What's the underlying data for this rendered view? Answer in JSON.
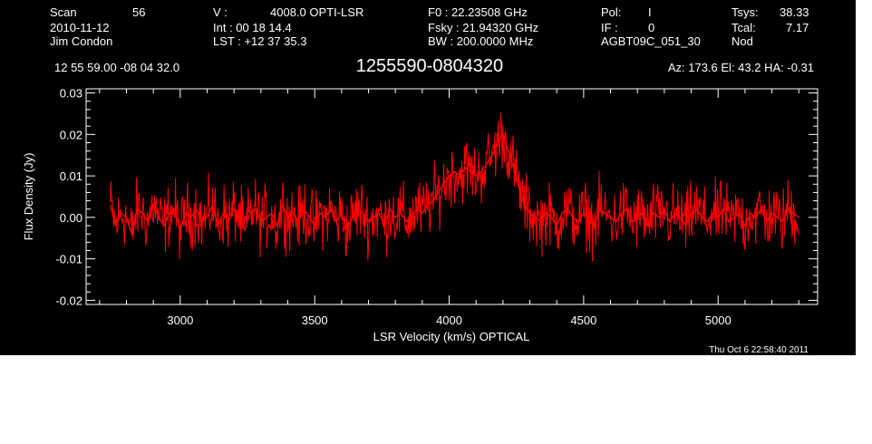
{
  "header": {
    "row1": [
      {
        "key": "scan",
        "text": "Scan"
      },
      {
        "key": "scan_value",
        "text": "56"
      },
      {
        "key": "v_label",
        "text": "V   :"
      },
      {
        "key": "v_value",
        "text": "4008.0 OPTI-LSR"
      },
      {
        "key": "f0",
        "text": "F0   :  22.23508 GHz"
      },
      {
        "key": "pol",
        "text": "Pol:"
      },
      {
        "key": "pol_value",
        "text": "I"
      },
      {
        "key": "tsys",
        "text": "Tsys:"
      },
      {
        "key": "tsys_value",
        "text": "38.33"
      }
    ],
    "row2": [
      {
        "key": "date",
        "text": "2010-11-12"
      },
      {
        "key": "int",
        "text": "Int  :  00 18 14.4"
      },
      {
        "key": "fsky",
        "text": "Fsky :  21.94320 GHz"
      },
      {
        "key": "if",
        "text": "IF :"
      },
      {
        "key": "if_value",
        "text": "0"
      },
      {
        "key": "tcal",
        "text": "Tcal:"
      },
      {
        "key": "tcal_value",
        "text": "7.17"
      }
    ],
    "row3": [
      {
        "key": "observer",
        "text": "Jim Condon"
      },
      {
        "key": "lst",
        "text": "LST : +12 37 35.3"
      },
      {
        "key": "bw",
        "text": "BW   : 200.0000 MHz"
      },
      {
        "key": "project",
        "text": "AGBT09C_051_30"
      },
      {
        "key": "mode",
        "text": "Nod"
      }
    ],
    "coords": "12 55 59.00   -08 04 32.0",
    "az_el_ha": "Az: 173.6   El:  43.2   HA: -0.31"
  },
  "chart_data": {
    "type": "line",
    "title": "1255590-0804320",
    "xlabel": "LSR Velocity (km/s) OPTICAL",
    "ylabel": "Flux Density (Jy)",
    "xlim": [
      2650,
      5370
    ],
    "ylim": [
      -0.021,
      0.031
    ],
    "x_ticks": [
      3000,
      3500,
      4000,
      4500,
      5000
    ],
    "y_ticks": [
      -0.02,
      -0.01,
      0.0,
      0.01,
      0.02,
      0.03
    ],
    "y_tick_labels": [
      "-0.02",
      "-0.01",
      "0.00",
      "0.01",
      "0.02",
      "0.03"
    ],
    "grid": false,
    "series": [
      {
        "color": "#ff0000",
        "x_start": 2740,
        "x_step": 20,
        "values": [
          0.003,
          -0.002,
          0.001,
          0.0,
          -0.004,
          0.002,
          0.001,
          -0.001,
          0.003,
          0.0,
          -0.002,
          0.001,
          0.002,
          -0.003,
          0.001,
          0.0,
          0.002,
          -0.001,
          0.0,
          0.003,
          -0.002,
          0.001,
          -0.001,
          0.002,
          0.0,
          -0.003,
          0.001,
          0.002,
          -0.001,
          0.0,
          0.001,
          -0.002,
          0.003,
          0.0,
          0.001,
          -0.001,
          0.002,
          0.0,
          -0.002,
          0.001,
          0.0,
          0.002,
          -0.001,
          0.001,
          -0.003,
          0.0,
          0.002,
          0.001,
          -0.001,
          0.0,
          0.001,
          -0.002,
          0.002,
          0.0,
          0.001,
          -0.001,
          0.0,
          0.002,
          0.001,
          0.003,
          0.004,
          0.006,
          0.008,
          0.01,
          0.011,
          0.01,
          0.012,
          0.011,
          0.01,
          0.011,
          0.013,
          0.015,
          0.018,
          0.02,
          0.016,
          0.012,
          0.007,
          0.003,
          0.001,
          0.0,
          -0.001,
          0.001,
          0.0,
          -0.002,
          0.001,
          0.002,
          0.0,
          -0.001,
          0.001,
          0.0,
          -0.002,
          0.002,
          0.001,
          0.0,
          -0.001,
          0.001,
          0.002,
          -0.001,
          0.0,
          0.001,
          -0.002,
          0.001,
          0.0,
          0.002,
          -0.001,
          0.001,
          0.0,
          -0.002,
          0.001,
          0.002,
          0.0,
          -0.001,
          0.001,
          0.0,
          0.002,
          -0.001,
          0.0,
          0.001,
          -0.002,
          0.001,
          0.0,
          0.002,
          -0.001,
          0.001,
          0.0,
          -0.001,
          0.002,
          0.001,
          0.0
        ]
      }
    ]
  },
  "footer": {
    "timestamp": "Thu Oct  6 22:58:40 2011"
  }
}
